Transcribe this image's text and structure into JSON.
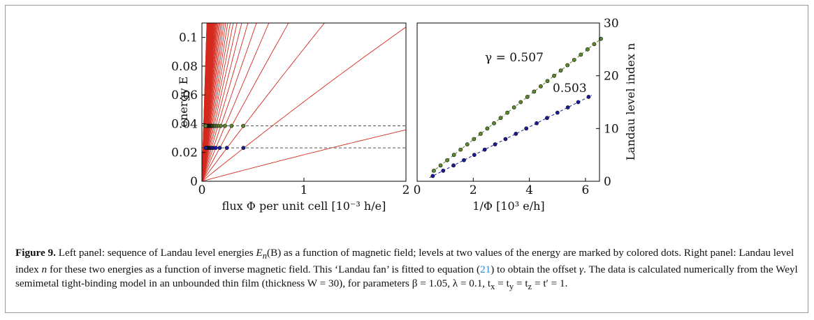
{
  "figure": {
    "caption": {
      "label": "Figure 9.",
      "p1": "Left panel: sequence of Landau level energies ",
      "en": "E",
      "en_sub": "n",
      "p2": "(B) as a function of magnetic field; levels at two values of the energy are marked by colored dots. Right panel: Landau level index ",
      "n": "n",
      "p3": " for these two energies as a function of inverse magnetic field. This ‘Landau fan’ is fitted to equation (",
      "ref": "21",
      "p4": ") to obtain the offset ",
      "gamma": "γ",
      "p5": ". The data is calculated numerically from the Weyl semimetal tight-binding model in an unbounded thin film (thickness ",
      "p6": "W = 30), for parameters β = 1.05, λ = 0.1, t",
      "tx_sub": "x",
      "p7": " = t",
      "ty_sub": "y",
      "p8": " = t",
      "tz_sub": "z",
      "p9": " = t′ = 1."
    }
  },
  "chart_data": [
    {
      "type": "line",
      "panel": "left",
      "xlabel": "flux Φ per unit cell [10⁻³ h/e]",
      "ylabel": "energy E",
      "xlim": [
        0,
        2
      ],
      "ylim": [
        0,
        0.11
      ],
      "xticks": [
        "0",
        "1",
        "2"
      ],
      "yticks": [
        "0",
        "0.02",
        "0.04",
        "0.06",
        "0.08",
        "0.1"
      ],
      "line_color": "#d42a1e",
      "levels": 60,
      "reference_energies": [
        0.0385,
        0.0232
      ],
      "series": [
        {
          "color": "#5a8a2a",
          "energy": 0.0385,
          "n_first": 2,
          "n_last": 27
        },
        {
          "color": "#1a1a9a",
          "energy": 0.0232,
          "n_first": 1,
          "n_last": 16
        }
      ]
    },
    {
      "type": "scatter",
      "panel": "right",
      "xlabel": "1/Φ [10³ e/h]",
      "ylabel": "Landau level index n",
      "xlim": [
        0,
        6.5
      ],
      "ylim": [
        0,
        30
      ],
      "xticks": [
        "0",
        "2",
        "4",
        "6"
      ],
      "yticks": [
        "0",
        "10",
        "20",
        "30"
      ],
      "annotations": [
        "γ = 0.507",
        "0.503"
      ],
      "series": [
        {
          "color": "#5a8a2a",
          "gamma": 0.507,
          "slope": 4.2,
          "n_first": 2,
          "n_last": 27
        },
        {
          "color": "#1a1a9a",
          "gamma": 0.503,
          "slope": 2.7,
          "n_first": 1,
          "n_last": 16
        }
      ]
    }
  ]
}
